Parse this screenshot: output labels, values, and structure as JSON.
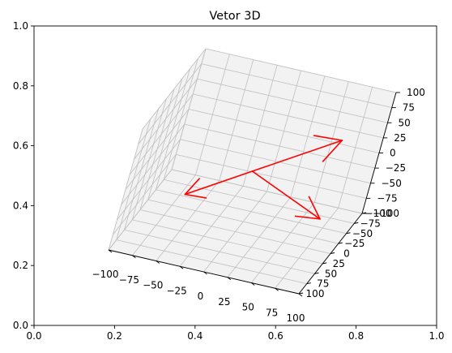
{
  "chart_data": {
    "type": "quiver3d",
    "title": "Vetor 3D",
    "outer_axes": {
      "xlim": [
        0.0,
        1.0
      ],
      "ylim": [
        0.0,
        1.0
      ],
      "x_ticks": [
        "0.0",
        "0.2",
        "0.4",
        "0.6",
        "0.8",
        "1.0"
      ],
      "y_ticks": [
        "0.0",
        "0.2",
        "0.4",
        "0.6",
        "0.8",
        "1.0"
      ]
    },
    "axes3d": {
      "xlim": [
        -100,
        100
      ],
      "ylim": [
        -100,
        100
      ],
      "zlim": [
        -100,
        100
      ],
      "x_ticks": [
        "−100",
        "−75",
        "−50",
        "−25",
        "0",
        "25",
        "50",
        "75",
        "100"
      ],
      "y_ticks": [
        "−100",
        "−75",
        "−50",
        "−25",
        "0",
        "25",
        "50",
        "75",
        "100"
      ],
      "z_ticks": [
        "−100",
        "−75",
        "−50",
        "−25",
        "0",
        "25",
        "50",
        "75",
        "100"
      ],
      "grid": true,
      "origin": [
        0,
        0,
        0
      ],
      "arrow_color": "#ff0000",
      "vectors": [
        {
          "x": 80,
          "y": 0,
          "z": 80
        },
        {
          "x": 80,
          "y": 0,
          "z": -50
        },
        {
          "x": -60,
          "y": 0,
          "z": -60
        }
      ]
    },
    "colors": {
      "pane": "#f2f2f2",
      "grid": "#bfbfbf",
      "arrow": "#ff0000"
    }
  }
}
